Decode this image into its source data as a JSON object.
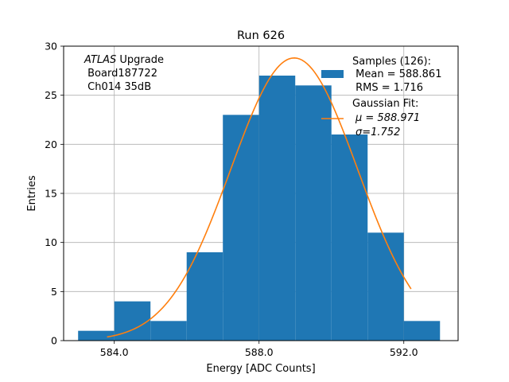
{
  "chart_data": {
    "type": "bar",
    "title": "Run 626",
    "xlabel": "Energy [ADC Counts]",
    "ylabel": "Entries",
    "xlim": [
      582.6,
      593.5
    ],
    "ylim": [
      0,
      30
    ],
    "x_ticks": [
      584,
      588,
      592
    ],
    "x_tick_labels": [
      "584.0",
      "588.0",
      "592.0"
    ],
    "y_ticks": [
      0,
      5,
      10,
      15,
      20,
      25,
      30
    ],
    "y_tick_labels": [
      "0",
      "5",
      "10",
      "15",
      "20",
      "25",
      "30"
    ],
    "grid": true,
    "bar_color": "#1f77b4",
    "fit_color": "#ff7f0e",
    "histogram": {
      "name": "Samples",
      "bin_edges": [
        583.0,
        584.0,
        585.0,
        586.0,
        587.0,
        588.0,
        589.0,
        590.0,
        591.0,
        592.0,
        593.0
      ],
      "counts": [
        1,
        4,
        2,
        9,
        23,
        27,
        26,
        21,
        11,
        2
      ]
    },
    "fit": {
      "name": "Gaussian Fit",
      "mu": 588.971,
      "sigma": 1.752,
      "amplitude": 28.8,
      "x_range": [
        583.8,
        592.2
      ]
    },
    "annotation": {
      "italic": "ATLAS",
      "rest": " Upgrade",
      "line2": " Board187722",
      "line3": " Ch014 35dB"
    },
    "legend": {
      "position": "top-right",
      "samples_title": "Samples (126):",
      "samples_mean": " Mean = 588.861",
      "samples_rms": " RMS = 1.716",
      "fit_title": "Gaussian Fit:",
      "fit_mu": "μ = 588.971",
      "fit_sigma": "σ=1.752"
    }
  }
}
